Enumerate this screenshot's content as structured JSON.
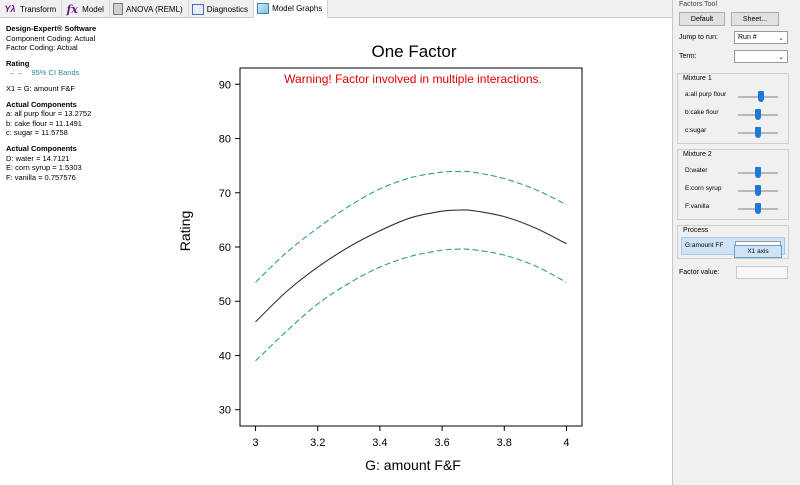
{
  "tabs": [
    {
      "label": "Transform",
      "icon": "transform-icon",
      "glyph": "Yλ"
    },
    {
      "label": "Model",
      "icon": "fx-icon",
      "glyph": "fx"
    },
    {
      "label": "ANOVA (REML)",
      "icon": "anova-icon",
      "glyph": ""
    },
    {
      "label": "Diagnostics",
      "icon": "diagnostics-icon",
      "glyph": ""
    },
    {
      "label": "Model Graphs",
      "icon": "model-graphs-icon",
      "glyph": ""
    }
  ],
  "info": {
    "software": "Design-Expert® Software",
    "component_coding": "Component Coding: Actual",
    "factor_coding": "Factor Coding: Actual",
    "response_heading": "Rating",
    "ci_legend_dash": "– –",
    "ci_legend_label": "95% CI Bands",
    "x1": "X1 = G: amount F&F",
    "actual_heading_1": "Actual Components",
    "components_1": [
      "a: all purp flour = 13.2752",
      "b: cake flour = 11.1491",
      "c: sugar = 11.5758"
    ],
    "actual_heading_2": "Actual Components",
    "components_2": [
      "D: water = 14.7121",
      "E: corn syrup = 1.5303",
      "F: vanilla = 0.757576"
    ]
  },
  "chart_data": {
    "type": "line",
    "title": "One Factor",
    "warning": "Warning! Factor involved in multiple interactions.",
    "xlabel": "G: amount F&F",
    "ylabel": "Rating",
    "xlim": [
      2.95,
      4.05
    ],
    "ylim": [
      27,
      93
    ],
    "xticks": [
      "3",
      "3.2",
      "3.4",
      "3.6",
      "3.8",
      "4"
    ],
    "yticks": [
      "30",
      "40",
      "50",
      "60",
      "70",
      "80",
      "90"
    ],
    "grid": false,
    "series": [
      {
        "role": "fit",
        "style": "solid",
        "color": "#333333",
        "x": [
          3.0,
          3.1,
          3.2,
          3.3,
          3.4,
          3.5,
          3.6,
          3.65,
          3.7,
          3.8,
          3.9,
          4.0
        ],
        "y": [
          46.2,
          51.8,
          56.3,
          60.0,
          63.0,
          65.4,
          66.6,
          66.8,
          66.7,
          65.6,
          63.5,
          60.6
        ]
      },
      {
        "role": "upper-ci",
        "style": "dashed",
        "color": "#2e9b9b",
        "x": [
          3.0,
          3.1,
          3.2,
          3.3,
          3.4,
          3.5,
          3.6,
          3.65,
          3.7,
          3.8,
          3.9,
          4.0
        ],
        "y": [
          53.5,
          59.0,
          63.5,
          67.5,
          70.7,
          72.8,
          73.8,
          73.9,
          73.8,
          72.6,
          70.6,
          67.8
        ]
      },
      {
        "role": "lower-ci",
        "style": "dashed",
        "color": "#2e9b9b",
        "x": [
          3.0,
          3.1,
          3.2,
          3.3,
          3.4,
          3.5,
          3.6,
          3.65,
          3.7,
          3.8,
          3.9,
          4.0
        ],
        "y": [
          39.0,
          44.5,
          49.5,
          53.3,
          56.3,
          58.3,
          59.4,
          59.6,
          59.5,
          58.5,
          56.5,
          53.5
        ]
      }
    ]
  },
  "factors_tool": {
    "title": "Factors Tool",
    "default_label": "Default",
    "sheet_label": "Sheet...",
    "jump_label": "Jump to run:",
    "jump_value": "Run #",
    "term_label": "Term:",
    "term_value": "",
    "mixture1_title": "Mixture 1",
    "mixture1": [
      {
        "label": "a:all purp flour",
        "level": 0.58
      },
      {
        "label": "b:cake flour",
        "level": 0.5
      },
      {
        "label": "c:sugar",
        "level": 0.5
      }
    ],
    "mixture2_title": "Mixture 2",
    "mixture2": [
      {
        "label": "D:water",
        "level": 0.5
      },
      {
        "label": "E:corn syrup",
        "level": 0.5
      },
      {
        "label": "F:vanilla",
        "level": 0.5
      }
    ],
    "process_title": "Process",
    "process_label": "G:amount FF",
    "popup_label": "X1 axis",
    "factor_value_label": "Factor value:"
  },
  "colors": {
    "warning": "#e00000",
    "slider_thumb": "#1e78d4",
    "ci_band": "#2e9b9b",
    "fit_line": "#333333"
  }
}
